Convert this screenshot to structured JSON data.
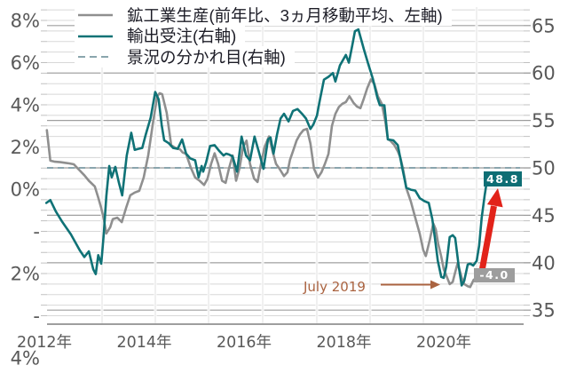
{
  "chart_data": {
    "type": "line",
    "title": "",
    "legend": [
      {
        "label": "鉱工業生産(前年比、3ヵ月移動平均、左軸)",
        "color": "#8f8f8f",
        "style": "solid"
      },
      {
        "label": "輸出受注(右軸)",
        "color": "#0f7276",
        "style": "solid"
      },
      {
        "label": "景況の分かれ目(右軸)",
        "color": "#8aa5ad",
        "style": "dashed"
      }
    ],
    "left_axis": {
      "unit": "%",
      "ticks": [
        "8%",
        "6%",
        "4%",
        "2%",
        "0%",
        "-2%",
        "-4%"
      ],
      "display_lines": [
        "8%",
        "6%",
        "4%",
        "2%",
        "0%",
        "-",
        "2%",
        "-",
        "4%"
      ],
      "tick_values": [
        8,
        6,
        4,
        2,
        0,
        -2,
        -4
      ]
    },
    "right_axis": {
      "ticks": [
        65,
        60,
        55,
        50,
        45,
        40,
        35
      ]
    },
    "x_axis": {
      "ticks": [
        "2012年",
        "2014年",
        "2016年",
        "2018年",
        "2020年"
      ],
      "years": [
        2012,
        2014,
        2016,
        2018,
        2020
      ]
    },
    "dividing_line_value": 50,
    "grid": true,
    "legend_position": "top-left",
    "annotations": {
      "july2019": {
        "text": "July 2019",
        "color": "#aa6340"
      },
      "teal_end": {
        "text": "48.8",
        "bg": "#0e6e74"
      },
      "gray_end": {
        "text": "-4.0",
        "bg": "#9d9d9d"
      },
      "red_arrow_color": "#e2231a"
    },
    "series": [
      {
        "name": "鉱工業生産(前年比、3ヵ月移動平均)",
        "axis": "left",
        "color": "#8f8f8f",
        "points": [
          [
            2012.05,
            2.8
          ],
          [
            2012.12,
            1.35
          ],
          [
            2012.21,
            1.3
          ],
          [
            2012.32,
            1.28
          ],
          [
            2012.41,
            1.25
          ],
          [
            2012.5,
            1.22
          ],
          [
            2012.59,
            1.18
          ],
          [
            2012.68,
            0.95
          ],
          [
            2012.8,
            0.66
          ],
          [
            2012.89,
            0.4
          ],
          [
            2013.01,
            0.13
          ],
          [
            2013.08,
            -0.4
          ],
          [
            2013.14,
            -0.9
          ],
          [
            2013.19,
            -1.4
          ],
          [
            2013.24,
            -2.1
          ],
          [
            2013.32,
            -1.8
          ],
          [
            2013.37,
            -1.42
          ],
          [
            2013.46,
            -1.35
          ],
          [
            2013.55,
            -1.56
          ],
          [
            2013.64,
            -0.86
          ],
          [
            2013.72,
            -0.29
          ],
          [
            2013.81,
            -0.16
          ],
          [
            2013.9,
            -0.08
          ],
          [
            2013.99,
            0.55
          ],
          [
            2014.08,
            1.6
          ],
          [
            2014.17,
            3.07
          ],
          [
            2014.26,
            4.4
          ],
          [
            2014.31,
            4.55
          ],
          [
            2014.36,
            4.5
          ],
          [
            2014.45,
            3.63
          ],
          [
            2014.54,
            2.09
          ],
          [
            2014.63,
            1.95
          ],
          [
            2014.72,
            1.88
          ],
          [
            2014.77,
            1.74
          ],
          [
            2014.84,
            1.67
          ],
          [
            2014.93,
            1.04
          ],
          [
            2015.02,
            0.55
          ],
          [
            2015.11,
            0.4
          ],
          [
            2015.2,
            0.2
          ],
          [
            2015.27,
            0.5
          ],
          [
            2015.34,
            1.2
          ],
          [
            2015.41,
            1.7
          ],
          [
            2015.48,
            1.2
          ],
          [
            2015.56,
            0.4
          ],
          [
            2015.63,
            0.3
          ],
          [
            2015.7,
            1.0
          ],
          [
            2015.77,
            1.6
          ],
          [
            2015.84,
            0.4
          ],
          [
            2015.91,
            1.0
          ],
          [
            2015.98,
            2.0
          ],
          [
            2016.05,
            2.3
          ],
          [
            2016.12,
            1.2
          ],
          [
            2016.2,
            0.5
          ],
          [
            2016.27,
            0.34
          ],
          [
            2016.34,
            1.2
          ],
          [
            2016.41,
            2.0
          ],
          [
            2016.5,
            2.5
          ],
          [
            2016.57,
            1.8
          ],
          [
            2016.64,
            1.2
          ],
          [
            2016.71,
            0.97
          ],
          [
            2016.8,
            0.62
          ],
          [
            2016.87,
            0.8
          ],
          [
            2016.92,
            1.4
          ],
          [
            2016.98,
            1.8
          ],
          [
            2017.05,
            2.3
          ],
          [
            2017.12,
            2.6
          ],
          [
            2017.19,
            2.8
          ],
          [
            2017.26,
            2.86
          ],
          [
            2017.33,
            2.16
          ],
          [
            2017.4,
            0.97
          ],
          [
            2017.48,
            0.55
          ],
          [
            2017.55,
            0.8
          ],
          [
            2017.62,
            1.2
          ],
          [
            2017.69,
            1.67
          ],
          [
            2017.76,
            3.0
          ],
          [
            2017.83,
            3.57
          ],
          [
            2017.9,
            3.9
          ],
          [
            2017.97,
            4.05
          ],
          [
            2018.04,
            4.13
          ],
          [
            2018.11,
            4.41
          ],
          [
            2018.19,
            4.1
          ],
          [
            2018.26,
            3.92
          ],
          [
            2018.33,
            3.84
          ],
          [
            2018.4,
            4.3
          ],
          [
            2018.47,
            4.8
          ],
          [
            2018.54,
            5.2
          ],
          [
            2018.61,
            5.0
          ],
          [
            2018.68,
            4.4
          ],
          [
            2018.76,
            4.05
          ],
          [
            2018.83,
            3.2
          ],
          [
            2018.88,
            2.37
          ],
          [
            2018.93,
            2.3
          ],
          [
            2019.01,
            2.09
          ],
          [
            2019.08,
            1.8
          ],
          [
            2019.13,
            1.5
          ],
          [
            2019.18,
            1.0
          ],
          [
            2019.22,
            0.5
          ],
          [
            2019.25,
            0.05
          ],
          [
            2019.34,
            -0.58
          ],
          [
            2019.43,
            -1.35
          ],
          [
            2019.52,
            -2.12
          ],
          [
            2019.59,
            -2.89
          ],
          [
            2019.64,
            -3.17
          ],
          [
            2019.72,
            -2.4
          ],
          [
            2019.79,
            -1.63
          ],
          [
            2019.84,
            -1.9
          ],
          [
            2019.89,
            -2.6
          ],
          [
            2019.95,
            -3.2
          ],
          [
            2020.0,
            -3.8
          ],
          [
            2020.07,
            -4.2
          ],
          [
            2020.12,
            -4.5
          ],
          [
            2020.18,
            -4.4
          ],
          [
            2020.23,
            -3.94
          ],
          [
            2020.28,
            -3.5
          ],
          [
            2020.36,
            -4.2
          ],
          [
            2020.41,
            -4.5
          ],
          [
            2020.48,
            -4.6
          ],
          [
            2020.53,
            -4.64
          ],
          [
            2020.6,
            -4.3
          ],
          [
            2020.66,
            -4.2
          ],
          [
            2020.71,
            -4.35
          ],
          [
            2020.76,
            -4.25
          ],
          [
            2020.82,
            -4.1
          ],
          [
            2020.85,
            -4.0
          ]
        ]
      },
      {
        "name": "輸出受注",
        "axis": "right",
        "color": "#0f7276",
        "points": [
          [
            2012.04,
            46.3
          ],
          [
            2012.12,
            46.6
          ],
          [
            2012.23,
            45.4
          ],
          [
            2012.36,
            44.3
          ],
          [
            2012.53,
            43.0
          ],
          [
            2012.71,
            41.3
          ],
          [
            2012.8,
            40.6
          ],
          [
            2012.89,
            41.2
          ],
          [
            2012.98,
            39.3
          ],
          [
            2013.03,
            38.8
          ],
          [
            2013.08,
            40.8
          ],
          [
            2013.14,
            39.9
          ],
          [
            2013.19,
            43.0
          ],
          [
            2013.24,
            47.0
          ],
          [
            2013.3,
            50.2
          ],
          [
            2013.35,
            49.0
          ],
          [
            2013.42,
            50.1
          ],
          [
            2013.49,
            48.5
          ],
          [
            2013.56,
            47.1
          ],
          [
            2013.65,
            51.3
          ],
          [
            2013.74,
            53.7
          ],
          [
            2013.81,
            51.9
          ],
          [
            2013.88,
            52.0
          ],
          [
            2013.96,
            52.1
          ],
          [
            2014.03,
            53.5
          ],
          [
            2014.13,
            55.3
          ],
          [
            2014.22,
            58.0
          ],
          [
            2014.29,
            57.2
          ],
          [
            2014.35,
            54.5
          ],
          [
            2014.4,
            52.9
          ],
          [
            2014.49,
            52.6
          ],
          [
            2014.58,
            52.1
          ],
          [
            2014.67,
            52.0
          ],
          [
            2014.76,
            53.0
          ],
          [
            2014.84,
            51.5
          ],
          [
            2014.92,
            51.0
          ],
          [
            2015.02,
            50.8
          ],
          [
            2015.09,
            49.0
          ],
          [
            2015.15,
            50.2
          ],
          [
            2015.18,
            49.6
          ],
          [
            2015.24,
            50.6
          ],
          [
            2015.32,
            52.3
          ],
          [
            2015.41,
            52.4
          ],
          [
            2015.5,
            51.8
          ],
          [
            2015.59,
            51.3
          ],
          [
            2015.64,
            51.5
          ],
          [
            2015.7,
            51.4
          ],
          [
            2015.77,
            51.2
          ],
          [
            2015.86,
            49.6
          ],
          [
            2015.95,
            53.3
          ],
          [
            2016.04,
            51.3
          ],
          [
            2016.12,
            50.8
          ],
          [
            2016.21,
            53.3
          ],
          [
            2016.3,
            51.6
          ],
          [
            2016.39,
            49.9
          ],
          [
            2016.48,
            53.0
          ],
          [
            2016.53,
            53.2
          ],
          [
            2016.59,
            51.5
          ],
          [
            2016.66,
            53.5
          ],
          [
            2016.73,
            55.2
          ],
          [
            2016.8,
            55.7
          ],
          [
            2016.89,
            54.9
          ],
          [
            2016.98,
            56.0
          ],
          [
            2017.07,
            56.2
          ],
          [
            2017.16,
            55.7
          ],
          [
            2017.24,
            55.2
          ],
          [
            2017.33,
            54.1
          ],
          [
            2017.39,
            54.6
          ],
          [
            2017.46,
            55.5
          ],
          [
            2017.51,
            56.9
          ],
          [
            2017.6,
            59.3
          ],
          [
            2017.69,
            59.6
          ],
          [
            2017.78,
            60.0
          ],
          [
            2017.83,
            59.1
          ],
          [
            2017.92,
            60.8
          ],
          [
            2018.04,
            61.9
          ],
          [
            2018.1,
            61.1
          ],
          [
            2018.17,
            63.0
          ],
          [
            2018.22,
            64.4
          ],
          [
            2018.29,
            64.6
          ],
          [
            2018.4,
            62.5
          ],
          [
            2018.49,
            60.9
          ],
          [
            2018.58,
            59.4
          ],
          [
            2018.67,
            57.4
          ],
          [
            2018.72,
            56.6
          ],
          [
            2018.81,
            56.6
          ],
          [
            2018.88,
            53.0
          ],
          [
            2018.99,
            52.9
          ],
          [
            2019.08,
            52.4
          ],
          [
            2019.16,
            50.2
          ],
          [
            2019.25,
            47.9
          ],
          [
            2019.34,
            47.7
          ],
          [
            2019.43,
            47.6
          ],
          [
            2019.52,
            46.8
          ],
          [
            2019.61,
            46.5
          ],
          [
            2019.7,
            46.3
          ],
          [
            2019.77,
            44.6
          ],
          [
            2019.82,
            42.7
          ],
          [
            2019.88,
            40.2
          ],
          [
            2019.95,
            38.5
          ],
          [
            2020.0,
            38.4
          ],
          [
            2020.05,
            39.6
          ],
          [
            2020.12,
            42.7
          ],
          [
            2020.18,
            42.9
          ],
          [
            2020.23,
            42.6
          ],
          [
            2020.3,
            39.6
          ],
          [
            2020.36,
            37.6
          ],
          [
            2020.41,
            38.1
          ],
          [
            2020.48,
            39.8
          ],
          [
            2020.53,
            39.9
          ],
          [
            2020.59,
            39.7
          ],
          [
            2020.66,
            40.2
          ],
          [
            2020.71,
            41.8
          ],
          [
            2020.76,
            44.7
          ],
          [
            2020.82,
            47.1
          ],
          [
            2020.87,
            48.8
          ]
        ]
      }
    ]
  }
}
